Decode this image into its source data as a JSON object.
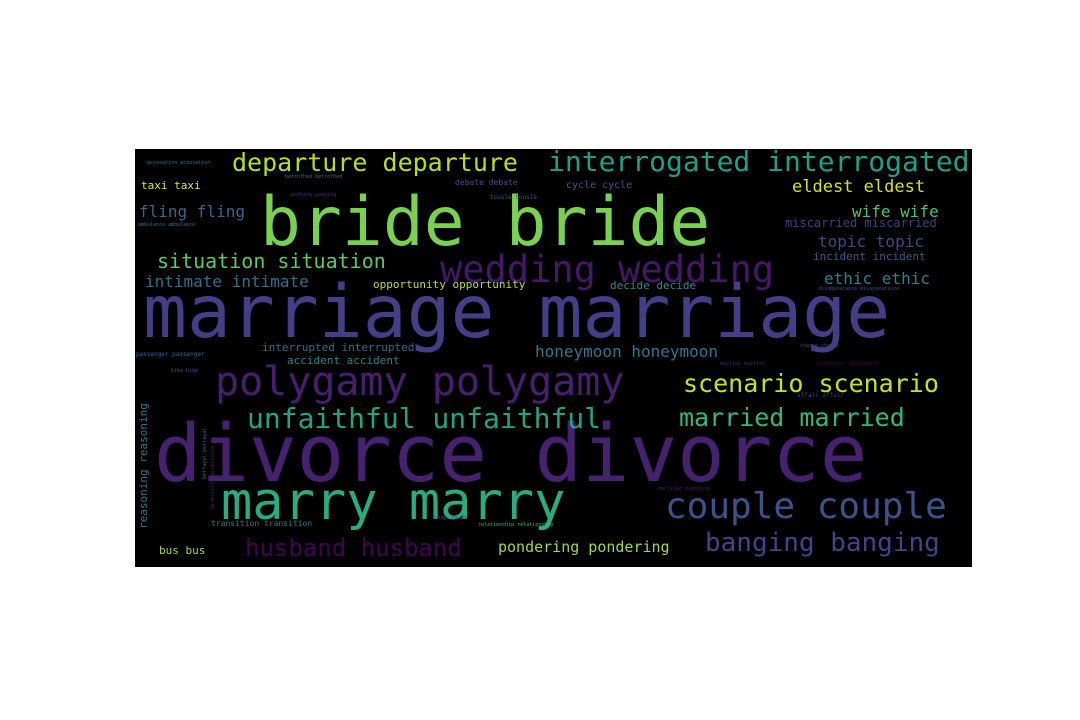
{
  "word_cloud": {
    "background": "#000000",
    "words": [
      {
        "id": "marriage",
        "text": "marriage marriage",
        "color": "#433e85"
      },
      {
        "id": "divorce",
        "text": "divorce divorce",
        "color": "#46216f"
      },
      {
        "id": "bride",
        "text": "bride bride",
        "color": "#7ad151"
      },
      {
        "id": "marry",
        "text": "marry marry",
        "color": "#27ad81"
      },
      {
        "id": "polygamy",
        "text": "polygamy polygamy",
        "color": "#481f70"
      },
      {
        "id": "wedding",
        "text": "wedding wedding",
        "color": "#46166a"
      },
      {
        "id": "interrogated",
        "text": "interrogated interrogated",
        "color": "#1f9e89"
      },
      {
        "id": "departure",
        "text": "departure departure",
        "color": "#b5de2b"
      },
      {
        "id": "couple",
        "text": "couple couple",
        "color": "#3b528b"
      },
      {
        "id": "unfaithful",
        "text": "unfaithful unfaithful",
        "color": "#20a486"
      },
      {
        "id": "married",
        "text": "married married",
        "color": "#35b779"
      },
      {
        "id": "scenario",
        "text": "scenario scenario",
        "color": "#c8e020"
      },
      {
        "id": "husband",
        "text": "husband husband",
        "color": "#440154"
      },
      {
        "id": "banging",
        "text": "banging banging",
        "color": "#414487"
      },
      {
        "id": "situation",
        "text": "situation situation",
        "color": "#5ec962"
      },
      {
        "id": "honeymoon",
        "text": "honeymoon honeymoon",
        "color": "#2a788e"
      },
      {
        "id": "pondering",
        "text": "pondering pondering",
        "color": "#a0da39"
      },
      {
        "id": "intimate",
        "text": "intimate intimate",
        "color": "#2c728e"
      },
      {
        "id": "eldest",
        "text": "eldest eldest",
        "color": "#d8e219"
      },
      {
        "id": "wife",
        "text": "wife wife",
        "color": "#4ac16d"
      },
      {
        "id": "topic",
        "text": "topic topic",
        "color": "#3e4989"
      },
      {
        "id": "ethic",
        "text": "ethic ethic",
        "color": "#26828e"
      },
      {
        "id": "fling",
        "text": "fling fling",
        "color": "#31688e"
      },
      {
        "id": "taxi",
        "text": "taxi taxi",
        "color": "#e5e419"
      },
      {
        "id": "miscarried",
        "text": "miscarried miscarried",
        "color": "#433e85"
      },
      {
        "id": "incident",
        "text": "incident incident",
        "color": "#375b8d"
      },
      {
        "id": "opportunity",
        "text": "opportunity opportunity",
        "color": "#bddf26"
      },
      {
        "id": "decide",
        "text": "decide decide",
        "color": "#228c8d"
      },
      {
        "id": "interrupted",
        "text": "interrupted interrupted",
        "color": "#2e6e8e"
      },
      {
        "id": "accident",
        "text": "accident accident",
        "color": "#25858e"
      },
      {
        "id": "reasoning",
        "text": "reasoning reasoning",
        "color": "#2a768e"
      },
      {
        "id": "bus",
        "text": "bus bus",
        "color": "#9fda3a"
      },
      {
        "id": "transition",
        "text": "transition transition",
        "color": "#277f8e"
      },
      {
        "id": "cycle",
        "text": "cycle cycle",
        "color": "#355f8d"
      },
      {
        "id": "debate",
        "text": "debate debate",
        "color": "#3d4e8a"
      },
      {
        "id": "ambulance",
        "text": "ambulance ambulance",
        "color": "#2d708e"
      },
      {
        "id": "betrothed",
        "text": "betrothed betrothed",
        "color": "#2f6c8e"
      },
      {
        "id": "parking",
        "text": "parking parking",
        "color": "#472c7a"
      },
      {
        "id": "tousle",
        "text": "tousle tousle",
        "color": "#3b528b"
      },
      {
        "id": "disappearance",
        "text": "disappearance disappearance",
        "color": "#3f4889"
      },
      {
        "id": "passenger",
        "text": "passenger passenger",
        "color": "#31688e"
      },
      {
        "id": "chance",
        "text": "chance chance",
        "color": "#3e4a89"
      },
      {
        "id": "marital",
        "text": "marital marital",
        "color": "#482576"
      },
      {
        "id": "roundabout",
        "text": "roundabout roundabout",
        "color": "#440154"
      },
      {
        "id": "affair",
        "text": "affair affair",
        "color": "#46337e"
      },
      {
        "id": "bike",
        "text": "bike bike",
        "color": "#3b528b"
      },
      {
        "id": "marrying",
        "text": "marrying marrying",
        "color": "#481b6d"
      },
      {
        "id": "laugh",
        "text": "laugh laugh",
        "color": "#3e4989"
      },
      {
        "id": "relationship",
        "text": "relationship relationship",
        "color": "#35b779"
      },
      {
        "id": "accusation",
        "text": "accusation accusation",
        "color": "#2a788e"
      },
      {
        "id": "betrayal",
        "text": "betrayal betrayal",
        "color": "#31688e"
      },
      {
        "id": "dismissive",
        "text": "dismissive dismissive",
        "color": "#481f70"
      }
    ]
  }
}
